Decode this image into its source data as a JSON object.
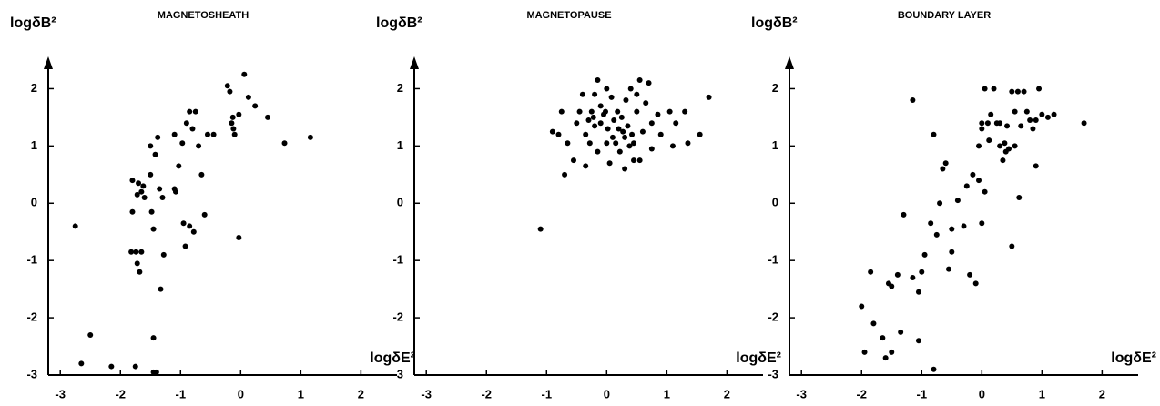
{
  "chart_data": [
    {
      "type": "scatter",
      "title": "MAGNETOSHEATH",
      "x_label": "logδE²",
      "y_label": "logδB²",
      "color": "#000000",
      "xlim": [
        -3.2,
        2.6
      ],
      "ylim": [
        -3,
        2.5
      ],
      "xticks": [
        -3,
        -2,
        -1,
        0,
        1,
        2
      ],
      "yticks": [
        -3,
        -2,
        -1,
        0,
        1,
        2
      ],
      "x": [
        -2.75,
        -2.5,
        -2.65,
        -2.15,
        -1.8,
        -1.7,
        -1.62,
        -1.8,
        -1.72,
        -1.65,
        -1.82,
        -1.74,
        -1.65,
        -1.72,
        -1.68,
        -1.6,
        -1.5,
        -1.5,
        -1.38,
        -1.42,
        -1.48,
        -1.45,
        -1.35,
        -1.3,
        -1.28,
        -1.33,
        -1.45,
        -1.45,
        -1.4,
        -1.75,
        -1.1,
        -1.1,
        -1.08,
        -1.03,
        -0.97,
        -0.95,
        -0.92,
        -0.9,
        -0.85,
        -0.85,
        -0.8,
        -0.78,
        -0.75,
        -0.7,
        -0.65,
        -0.6,
        -0.55,
        -0.45,
        -0.22,
        -0.18,
        -0.15,
        -0.13,
        -0.12,
        -0.1,
        -0.03,
        -0.03,
        0.06,
        0.13,
        0.24,
        0.45,
        0.73,
        1.16
      ],
      "values": [
        -0.4,
        -2.3,
        -2.8,
        -2.85,
        0.4,
        0.35,
        0.3,
        -0.15,
        0.15,
        0.2,
        -0.85,
        -0.85,
        -0.85,
        -1.05,
        -1.2,
        0.1,
        0.5,
        1.0,
        1.15,
        0.85,
        -0.15,
        -0.45,
        0.25,
        0.1,
        -0.9,
        -1.5,
        -2.35,
        -2.95,
        -2.95,
        -2.85,
        1.2,
        0.25,
        0.2,
        0.65,
        1.05,
        -0.35,
        -0.75,
        1.4,
        1.6,
        -0.4,
        1.3,
        -0.5,
        1.6,
        1.0,
        0.5,
        -0.2,
        1.2,
        1.2,
        2.05,
        1.95,
        1.4,
        1.5,
        1.3,
        1.2,
        1.55,
        -0.6,
        2.25,
        1.85,
        1.7,
        1.5,
        1.05,
        1.15
      ]
    },
    {
      "type": "scatter",
      "title": "MAGNETOPAUSE",
      "x_label": "logδE²",
      "y_label": "logδB²",
      "color": "#000000",
      "xlim": [
        -3.2,
        2.6
      ],
      "ylim": [
        -3,
        2.5
      ],
      "xticks": [
        -3,
        -2,
        -1,
        0,
        1,
        2
      ],
      "yticks": [
        -3,
        -2,
        -1,
        0,
        1,
        2
      ],
      "x": [
        -1.1,
        -0.9,
        -0.8,
        -0.75,
        -0.7,
        -0.65,
        -0.55,
        -0.5,
        -0.45,
        -0.4,
        -0.35,
        -0.35,
        -0.3,
        -0.28,
        -0.25,
        -0.22,
        -0.2,
        -0.2,
        -0.15,
        -0.15,
        -0.1,
        -0.1,
        -0.05,
        0,
        0,
        0.02,
        0.05,
        0.08,
        0.1,
        0.12,
        0.15,
        0.18,
        0.2,
        0.22,
        0.25,
        0.27,
        0.3,
        0.3,
        0.32,
        0.35,
        0.38,
        0.4,
        0.42,
        0.45,
        0.5,
        0.5,
        0.55,
        0.55,
        0.6,
        0.65,
        0.7,
        0.75,
        0.75,
        0.85,
        0.9,
        1.05,
        1.1,
        1.15,
        1.3,
        1.35,
        1.55,
        1.7,
        0.45,
        -0.02
      ],
      "values": [
        -0.45,
        1.25,
        1.2,
        1.6,
        0.5,
        1.05,
        0.75,
        1.4,
        1.6,
        1.9,
        1.2,
        0.65,
        1.45,
        1.05,
        1.6,
        1.5,
        1.35,
        1.9,
        2.15,
        0.9,
        1.7,
        1.4,
        1.55,
        2.0,
        1.05,
        1.3,
        0.7,
        1.85,
        1.15,
        1.45,
        1.05,
        1.6,
        1.3,
        0.9,
        1.5,
        1.25,
        1.15,
        0.6,
        1.8,
        1.35,
        1.0,
        2.0,
        1.2,
        1.05,
        1.6,
        1.9,
        0.75,
        2.15,
        1.25,
        1.75,
        2.1,
        1.4,
        0.95,
        1.55,
        1.2,
        1.6,
        1.0,
        1.4,
        1.6,
        1.05,
        1.2,
        1.85,
        0.75,
        1.6
      ]
    },
    {
      "type": "scatter",
      "title": "BOUNDARY LAYER",
      "x_label": "logδE²",
      "y_label": "logδB²",
      "color": "#000000",
      "xlim": [
        -3.2,
        2.6
      ],
      "ylim": [
        -3,
        2.5
      ],
      "xticks": [
        -3,
        -2,
        -1,
        0,
        1,
        2
      ],
      "yticks": [
        -3,
        -2,
        -1,
        0,
        1,
        2
      ],
      "x": [
        -2.0,
        -1.95,
        -1.85,
        -1.8,
        -1.65,
        -1.6,
        -1.55,
        -1.5,
        -1.5,
        -1.4,
        -1.35,
        -1.3,
        -1.15,
        -1.15,
        -1.05,
        -1.05,
        -1.0,
        -0.95,
        -0.85,
        -0.8,
        -0.8,
        -0.75,
        -0.7,
        -0.65,
        -0.6,
        -0.55,
        -0.5,
        -0.5,
        -0.4,
        -0.3,
        -0.25,
        -0.2,
        -0.15,
        -0.1,
        -0.05,
        -0.05,
        0,
        0,
        0.05,
        0.05,
        0.1,
        0.12,
        0.15,
        0.2,
        0.25,
        0.3,
        0.35,
        0.38,
        0.4,
        0.42,
        0.45,
        0.5,
        0.5,
        0.55,
        0.55,
        0.6,
        0.62,
        0.65,
        0.7,
        0.75,
        0.8,
        0.85,
        0.9,
        0.9,
        0.95,
        1.0,
        1.1,
        1.2,
        1.7,
        0.3,
        0
      ],
      "values": [
        -1.8,
        -2.6,
        -1.2,
        -2.1,
        -2.35,
        -2.7,
        -1.4,
        -1.45,
        -2.6,
        -1.25,
        -2.25,
        -0.2,
        1.8,
        -1.3,
        -1.55,
        -2.4,
        -1.2,
        -0.9,
        -0.35,
        1.2,
        -2.9,
        -0.55,
        0,
        0.6,
        0.7,
        -1.15,
        -0.85,
        -0.45,
        0.05,
        -0.4,
        0.3,
        -1.25,
        0.5,
        -1.4,
        0.4,
        1.0,
        1.3,
        -0.35,
        2.0,
        0.2,
        1.4,
        1.1,
        1.55,
        2.0,
        1.4,
        1.0,
        0.75,
        1.05,
        0.9,
        1.35,
        0.95,
        -0.75,
        1.95,
        1.6,
        1.0,
        1.95,
        0.1,
        1.35,
        1.95,
        1.6,
        1.45,
        1.3,
        1.45,
        0.65,
        2.0,
        1.55,
        1.5,
        1.55,
        1.4,
        1.4,
        1.4
      ]
    }
  ]
}
